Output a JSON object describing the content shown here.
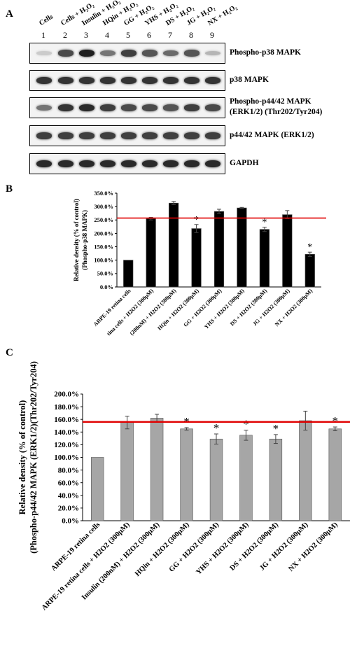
{
  "panels": {
    "a": "A",
    "b": "B",
    "c": "C"
  },
  "lanes": [
    {
      "number": "1",
      "label": "Cells"
    },
    {
      "number": "2",
      "label": "Cells + H₂O₂"
    },
    {
      "number": "3",
      "label": "Insulin + H₂O₂"
    },
    {
      "number": "4",
      "label": "HQin + H₂O₂"
    },
    {
      "number": "5",
      "label": "GG + H₂O₂"
    },
    {
      "number": "6",
      "label": "YHS + H₂O₂"
    },
    {
      "number": "7",
      "label": "DS + H₂O₂"
    },
    {
      "number": "8",
      "label": "JG + H₂O₂"
    },
    {
      "number": "9",
      "label": "NX + H₂O₂"
    }
  ],
  "blots": [
    {
      "label_1": "Phospho-p38 MAPK",
      "label_2": "",
      "intensity": [
        0.15,
        0.75,
        0.95,
        0.55,
        0.8,
        0.7,
        0.6,
        0.7,
        0.25
      ]
    },
    {
      "label_1": "p38 MAPK",
      "label_2": "",
      "intensity": [
        0.85,
        0.85,
        0.85,
        0.85,
        0.85,
        0.85,
        0.85,
        0.85,
        0.85
      ]
    },
    {
      "label_1": "Phospho-p44/42 MAPK",
      "label_2": "(ERK1/2) (Thr202/Tyr204)",
      "intensity": [
        0.55,
        0.85,
        0.9,
        0.8,
        0.75,
        0.75,
        0.7,
        0.8,
        0.75
      ]
    },
    {
      "label_1": "p44/42 MAPK (ERK1/2)",
      "label_2": "",
      "intensity": [
        0.8,
        0.8,
        0.8,
        0.8,
        0.8,
        0.8,
        0.8,
        0.8,
        0.8
      ]
    },
    {
      "label_1": "GAPDH",
      "label_2": "",
      "intensity": [
        0.9,
        0.9,
        0.9,
        0.9,
        0.9,
        0.9,
        0.9,
        0.9,
        0.9
      ]
    }
  ],
  "chart_data": [
    {
      "type": "bar",
      "title": "",
      "ylabel_1": "Relative density (% of control)",
      "ylabel_2": "(Phospho-p38 MAPK)",
      "ylim": [
        0,
        350
      ],
      "yticks": [
        "0.0%",
        "50.0%",
        "100.0%",
        "150.0%",
        "200.0%",
        "250.0%",
        "300.0%",
        "350.0%"
      ],
      "categories": [
        "ARPE-19 retina cells",
        "tina cells + H2O2 (300μM)",
        "(200nM) + H2O2 (300μM)",
        "HQin + H2O2 (300μM)",
        "GG + H2O2 (300μM)",
        "YHS + H2O2 (300μM)",
        "DS + H2O2 (300μM)",
        "JG + H2O2 (300μM)",
        "NX + H2O2 (300μM)"
      ],
      "values": [
        100,
        255,
        313,
        218,
        282,
        295,
        215,
        270,
        122
      ],
      "errors": [
        0,
        5,
        6,
        15,
        8,
        2,
        8,
        15,
        8
      ],
      "significance": [
        "",
        "",
        "",
        "*",
        "",
        "",
        "*",
        "",
        "*"
      ],
      "reference_line": 257,
      "bar_color": "#000000",
      "line_color": "#e00000"
    },
    {
      "type": "bar",
      "title": "",
      "ylabel_1": "Relative density (% of control)",
      "ylabel_2": "(Phospho-p44/42 MAPK (ERK1/2)(Thr202/Tyr204)",
      "ylim": [
        0,
        200
      ],
      "yticks": [
        "0.0%",
        "20.0%",
        "40.0%",
        "60.0%",
        "80.0%",
        "100.0%",
        "120.0%",
        "140.0%",
        "160.0%",
        "180.0%",
        "200.0%"
      ],
      "categories": [
        "ARPE-19 retina cells",
        "ARPE-19 retina cells + H2O2 (300μM)",
        "Insulin (200nM) + H2O2 (300μM)",
        "HQin + H2O2 (300μM)",
        "GG + H2O2 (300μM)",
        "YHS + H2O2 (300μM)",
        "DS + H2O2 (300μM)",
        "JG + H2O2 (300μM)",
        "NX + H2O2 (300μM)"
      ],
      "values": [
        100,
        155,
        162,
        145,
        129,
        135,
        129,
        158,
        145
      ],
      "errors": [
        0,
        10,
        6,
        2,
        8,
        8,
        7,
        15,
        3
      ],
      "significance": [
        "",
        "",
        "",
        "*",
        "*",
        "*",
        "*",
        "",
        "*"
      ],
      "reference_line": 156,
      "bar_color": "#a6a6a6",
      "line_color": "#e00000"
    }
  ]
}
